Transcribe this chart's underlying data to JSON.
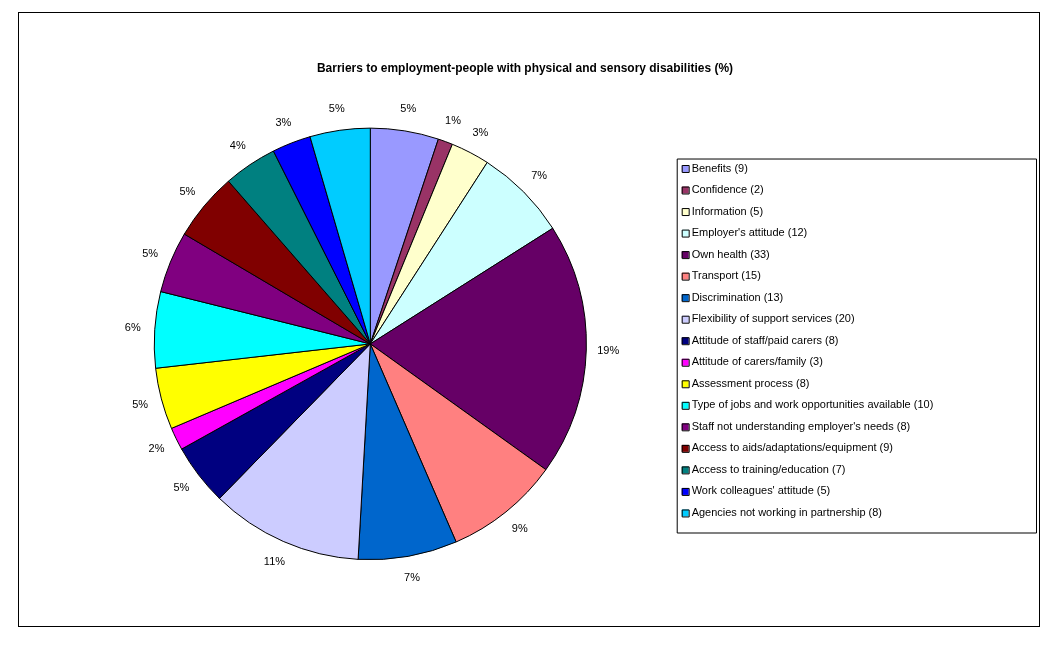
{
  "chart_data": {
    "type": "pie",
    "title": "Barriers to employment-people with physical and sensory disabilities (%)",
    "categories": [
      "Benefits (9)",
      "Confidence (2)",
      "Information (5)",
      "Employer's attitude (12)",
      "Own health (33)",
      "Transport (15)",
      "Discrimination (13)",
      "Flexibility of support services (20)",
      "Attitude of staff/paid carers (8)",
      "Attitude of carers/family (3)",
      "Assessment process (8)",
      "Type of jobs and work opportunities available (10)",
      "Staff not understanding employer's needs (8)",
      "Access to aids/adaptations/equipment (9)",
      "Access to training/education (7)",
      "Work colleagues' attitude (5)",
      "Agencies not working in partnership (8)"
    ],
    "values": [
      5.1,
      1.1,
      2.9,
      6.9,
      18.9,
      8.6,
      7.4,
      11.4,
      4.6,
      1.7,
      4.6,
      5.7,
      4.6,
      5.1,
      4.0,
      2.9,
      4.5
    ],
    "value_labels": [
      "5%",
      "1%",
      "3%",
      "7%",
      "19%",
      "9%",
      "7%",
      "11%",
      "5%",
      "2%",
      "5%",
      "6%",
      "5%",
      "5%",
      "4%",
      "3%",
      "5%"
    ],
    "colors": [
      "#9999ff",
      "#993366",
      "#ffffcc",
      "#ccffff",
      "#660066",
      "#ff8080",
      "#0066cc",
      "#ccccff",
      "#000080",
      "#ff00ff",
      "#ffff00",
      "#00ffff",
      "#800080",
      "#800000",
      "#008080",
      "#0000ff",
      "#00ccff"
    ],
    "legend": "right"
  }
}
